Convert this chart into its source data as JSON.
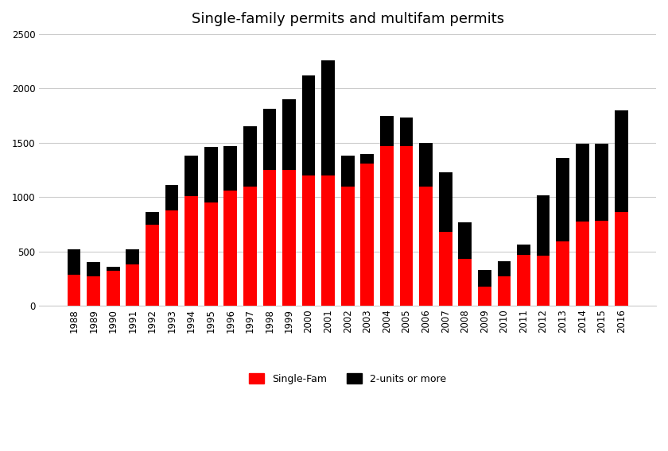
{
  "title": "Single-family permits and multifam permits",
  "years": [
    1988,
    1989,
    1990,
    1991,
    1992,
    1993,
    1994,
    1995,
    1996,
    1997,
    1998,
    1999,
    2000,
    2001,
    2002,
    2003,
    2004,
    2005,
    2006,
    2007,
    2008,
    2009,
    2010,
    2011,
    2012,
    2013,
    2014,
    2015,
    2016
  ],
  "single_fam": [
    290,
    270,
    320,
    380,
    750,
    880,
    1010,
    950,
    1060,
    1100,
    1250,
    1250,
    1200,
    1200,
    1100,
    1310,
    1470,
    1470,
    1100,
    680,
    430,
    175,
    275,
    470,
    460,
    595,
    775,
    785,
    865
  ],
  "multi_fam": [
    230,
    130,
    40,
    140,
    110,
    230,
    370,
    510,
    410,
    550,
    560,
    650,
    920,
    1060,
    280,
    90,
    280,
    260,
    400,
    550,
    340,
    155,
    135,
    95,
    560,
    765,
    715,
    705,
    935
  ],
  "single_fam_color": "#ff0000",
  "multi_fam_color": "#000000",
  "ylim": [
    0,
    2500
  ],
  "yticks": [
    0,
    500,
    1000,
    1500,
    2000,
    2500
  ],
  "legend_labels": [
    "Single-Fam",
    "2-units or more"
  ],
  "title_fontsize": 13,
  "tick_fontsize": 8.5,
  "legend_fontsize": 9
}
